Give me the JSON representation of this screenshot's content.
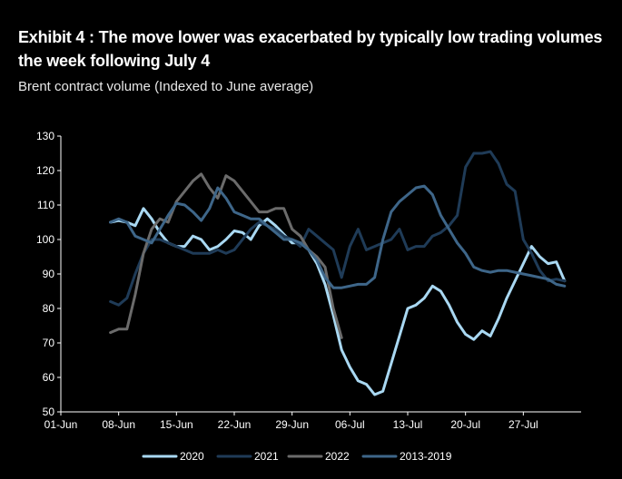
{
  "header": {
    "title": "Exhibit 4 : The move lower was exacerbated by typically low trading volumes the week following July 4",
    "subtitle": "Brent contract volume (Indexed to June average)"
  },
  "chart_data": {
    "type": "line",
    "title": "Exhibit 4 : The move lower was exacerbated by typically low trading volumes the week following July 4",
    "subtitle": "Brent contract volume (Indexed to June average)",
    "xlabel": "",
    "ylabel": "",
    "ylim": [
      50,
      130
    ],
    "yticks": [
      50,
      60,
      70,
      80,
      90,
      100,
      110,
      120,
      130
    ],
    "xlim": [
      0,
      63
    ],
    "xticks": [
      {
        "x": 0,
        "label": "01-Jun"
      },
      {
        "x": 7,
        "label": "08-Jun"
      },
      {
        "x": 14,
        "label": "15-Jun"
      },
      {
        "x": 21,
        "label": "22-Jun"
      },
      {
        "x": 28,
        "label": "29-Jun"
      },
      {
        "x": 35,
        "label": "06-Jul"
      },
      {
        "x": 42,
        "label": "13-Jul"
      },
      {
        "x": 49,
        "label": "20-Jul"
      },
      {
        "x": 56,
        "label": "27-Jul"
      }
    ],
    "legend_position": "bottom",
    "grid": false,
    "series": [
      {
        "name": "2020",
        "color": "#a9d8f2",
        "points": [
          [
            6,
            105
          ],
          [
            7,
            105.5
          ],
          [
            8,
            105
          ],
          [
            9,
            104
          ],
          [
            10,
            109
          ],
          [
            11,
            106
          ],
          [
            12,
            102
          ],
          [
            13,
            99
          ],
          [
            14,
            98
          ],
          [
            15,
            98
          ],
          [
            16,
            101
          ],
          [
            17,
            100
          ],
          [
            18,
            97
          ],
          [
            19,
            98
          ],
          [
            20,
            100
          ],
          [
            21,
            102.5
          ],
          [
            22,
            102
          ],
          [
            23,
            100
          ],
          [
            24,
            104
          ],
          [
            25,
            106
          ],
          [
            26,
            104
          ],
          [
            27,
            101.5
          ],
          [
            28,
            99
          ],
          [
            29,
            99
          ],
          [
            30,
            97
          ],
          [
            31,
            93
          ],
          [
            32,
            87
          ],
          [
            33,
            78
          ],
          [
            34,
            68
          ],
          [
            35,
            63
          ],
          [
            36,
            59
          ],
          [
            37,
            58
          ],
          [
            38,
            55
          ],
          [
            39,
            56
          ],
          [
            40,
            64
          ],
          [
            41,
            72
          ],
          [
            42,
            80
          ],
          [
            43,
            81
          ],
          [
            44,
            83
          ],
          [
            45,
            86.5
          ],
          [
            46,
            85
          ],
          [
            47,
            81
          ],
          [
            48,
            76
          ],
          [
            49,
            72.5
          ],
          [
            50,
            71
          ],
          [
            51,
            73.5
          ],
          [
            52,
            72
          ],
          [
            53,
            77
          ],
          [
            54,
            83
          ],
          [
            55,
            88
          ],
          [
            56,
            93
          ],
          [
            57,
            98
          ],
          [
            58,
            95
          ],
          [
            59,
            93
          ],
          [
            60,
            93.5
          ],
          [
            61,
            88
          ]
        ]
      },
      {
        "name": "2021",
        "color": "#1f3b57",
        "points": [
          [
            6,
            82
          ],
          [
            7,
            81
          ],
          [
            8,
            83
          ],
          [
            9,
            90
          ],
          [
            10,
            96
          ],
          [
            11,
            100
          ],
          [
            12,
            100
          ],
          [
            13,
            99
          ],
          [
            14,
            98
          ],
          [
            15,
            97
          ],
          [
            16,
            96
          ],
          [
            17,
            96
          ],
          [
            18,
            96
          ],
          [
            19,
            97
          ],
          [
            20,
            96
          ],
          [
            21,
            97
          ],
          [
            22,
            100
          ],
          [
            23,
            103
          ],
          [
            24,
            105
          ],
          [
            25,
            104
          ],
          [
            26,
            103
          ],
          [
            27,
            101
          ],
          [
            28,
            100
          ],
          [
            29,
            98
          ],
          [
            30,
            103
          ],
          [
            31,
            101
          ],
          [
            32,
            99
          ],
          [
            33,
            97
          ],
          [
            34,
            89
          ],
          [
            35,
            98
          ],
          [
            36,
            103
          ],
          [
            37,
            97
          ],
          [
            38,
            98
          ],
          [
            39,
            99
          ],
          [
            40,
            100
          ],
          [
            41,
            103
          ],
          [
            42,
            97
          ],
          [
            43,
            98
          ],
          [
            44,
            98
          ],
          [
            45,
            101
          ],
          [
            46,
            102
          ],
          [
            47,
            104
          ],
          [
            48,
            107
          ],
          [
            49,
            121
          ],
          [
            50,
            125
          ],
          [
            51,
            125
          ],
          [
            52,
            125.5
          ],
          [
            53,
            122
          ],
          [
            54,
            116
          ],
          [
            55,
            114
          ],
          [
            56,
            100
          ],
          [
            57,
            96
          ],
          [
            58,
            91
          ],
          [
            59,
            88
          ],
          [
            60,
            88.5
          ],
          [
            61,
            88
          ]
        ]
      },
      {
        "name": "2022",
        "color": "#6b6b6b",
        "points": [
          [
            6,
            73
          ],
          [
            7,
            74
          ],
          [
            8,
            74
          ],
          [
            9,
            84
          ],
          [
            10,
            96
          ],
          [
            11,
            103
          ],
          [
            12,
            106
          ],
          [
            13,
            105
          ],
          [
            14,
            111
          ],
          [
            15,
            114
          ],
          [
            16,
            117
          ],
          [
            17,
            119
          ],
          [
            18,
            115
          ],
          [
            19,
            112
          ],
          [
            20,
            118.5
          ],
          [
            21,
            117
          ],
          [
            22,
            114
          ],
          [
            23,
            111
          ],
          [
            24,
            108
          ],
          [
            25,
            108
          ],
          [
            26,
            109
          ],
          [
            27,
            109
          ],
          [
            28,
            103
          ],
          [
            29,
            101
          ],
          [
            30,
            97
          ],
          [
            31,
            95
          ],
          [
            32,
            92
          ],
          [
            33,
            80
          ],
          [
            34,
            71.5
          ]
        ]
      },
      {
        "name": "2013-2019",
        "color": "#3e6689",
        "points": [
          [
            6,
            105
          ],
          [
            7,
            106
          ],
          [
            8,
            105
          ],
          [
            9,
            101
          ],
          [
            10,
            100
          ],
          [
            11,
            99
          ],
          [
            12,
            103
          ],
          [
            13,
            107
          ],
          [
            14,
            110.5
          ],
          [
            15,
            110
          ],
          [
            16,
            108
          ],
          [
            17,
            105.5
          ],
          [
            18,
            109
          ],
          [
            19,
            115
          ],
          [
            20,
            112
          ],
          [
            21,
            108
          ],
          [
            22,
            107
          ],
          [
            23,
            106
          ],
          [
            24,
            106
          ],
          [
            25,
            104
          ],
          [
            26,
            102
          ],
          [
            27,
            100
          ],
          [
            28,
            100
          ],
          [
            29,
            99
          ],
          [
            30,
            97
          ],
          [
            31,
            94
          ],
          [
            32,
            89
          ],
          [
            33,
            86
          ],
          [
            34,
            86
          ],
          [
            35,
            86.5
          ],
          [
            36,
            87
          ],
          [
            37,
            87
          ],
          [
            38,
            89
          ],
          [
            39,
            100
          ],
          [
            40,
            108
          ],
          [
            41,
            111
          ],
          [
            42,
            113
          ],
          [
            43,
            115
          ],
          [
            44,
            115.5
          ],
          [
            45,
            113
          ],
          [
            46,
            107
          ],
          [
            47,
            103
          ],
          [
            48,
            99
          ],
          [
            49,
            96
          ],
          [
            50,
            92
          ],
          [
            51,
            91
          ],
          [
            52,
            90.5
          ],
          [
            53,
            91
          ],
          [
            54,
            91
          ],
          [
            55,
            90.5
          ],
          [
            56,
            90
          ],
          [
            57,
            89.5
          ],
          [
            58,
            89
          ],
          [
            59,
            88.5
          ],
          [
            60,
            87
          ],
          [
            61,
            86.5
          ]
        ]
      }
    ]
  }
}
